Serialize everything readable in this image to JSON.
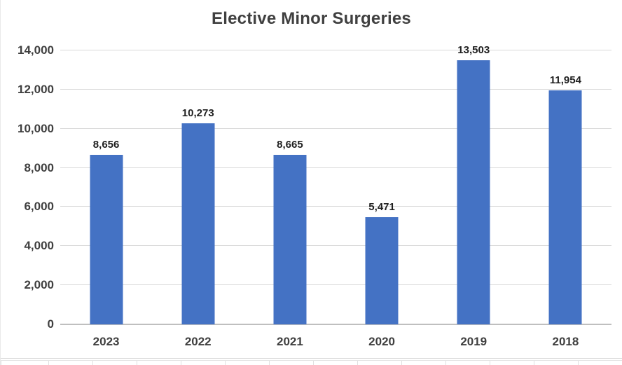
{
  "chart_data": {
    "type": "bar",
    "title": "Elective Minor Surgeries",
    "categories": [
      "2023",
      "2022",
      "2021",
      "2020",
      "2019",
      "2018"
    ],
    "values": [
      8656,
      10273,
      8665,
      5471,
      13503,
      11954
    ],
    "data_labels": [
      "8,656",
      "10,273",
      "8,665",
      "5,471",
      "13,503",
      "11,954"
    ],
    "xlabel": "",
    "ylabel": "",
    "ylim": [
      0,
      14000
    ],
    "ytick_values": [
      0,
      2000,
      4000,
      6000,
      8000,
      10000,
      12000,
      14000
    ],
    "ytick_labels": [
      "0",
      "2,000",
      "4,000",
      "6,000",
      "8,000",
      "10,000",
      "12,000",
      "14,000"
    ],
    "grid": "horizontal",
    "legend": "none",
    "colors": {
      "bar": "#4472C4",
      "gridline": "#D9D9D9",
      "axis_line": "#BFBFBF",
      "title_text": "#404040",
      "axis_text": "#3F3F3F",
      "data_label_text": "#1F1F1F"
    }
  }
}
